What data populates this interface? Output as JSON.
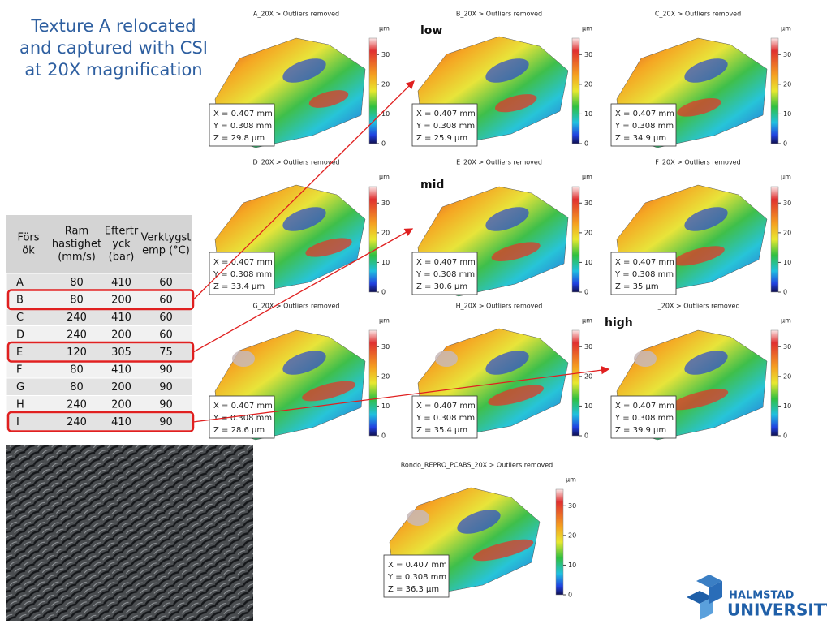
{
  "title": [
    "Texture A relocated",
    "and captured with CSI",
    "at 20X magnification"
  ],
  "annotations": [
    "low",
    "mid",
    "high"
  ],
  "colorbar": {
    "unit": "µm",
    "ticks": [
      0,
      10,
      20,
      30
    ]
  },
  "panels": [
    {
      "title": "A_20X > Outliers removed",
      "x": "X = 0.407 mm",
      "y": "Y = 0.308 mm",
      "z": "Z = 29.8 µm"
    },
    {
      "title": "B_20X > Outliers removed",
      "x": "X = 0.407 mm",
      "y": "Y = 0.308 mm",
      "z": "Z = 25.9 µm"
    },
    {
      "title": "C_20X > Outliers removed",
      "x": "X = 0.407 mm",
      "y": "Y = 0.308 mm",
      "z": "Z = 34.9 µm"
    },
    {
      "title": "D_20X > Outliers removed",
      "x": "X = 0.407 mm",
      "y": "Y = 0.308 mm",
      "z": "Z = 33.4 µm"
    },
    {
      "title": "E_20X > Outliers removed",
      "x": "X = 0.407 mm",
      "y": "Y = 0.308 mm",
      "z": "Z = 30.6 µm"
    },
    {
      "title": "F_20X > Outliers removed",
      "x": "X = 0.407 mm",
      "y": "Y = 0.308 mm",
      "z": "Z = 35 µm"
    },
    {
      "title": "G_20X > Outliers removed",
      "x": "X = 0.407 mm",
      "y": "Y = 0.308 mm",
      "z": "Z = 28.6 µm"
    },
    {
      "title": "H_20X > Outliers removed",
      "x": "X = 0.407 mm",
      "y": "Y = 0.308 mm",
      "z": "Z = 35.4 µm"
    },
    {
      "title": "I_20X > Outliers removed",
      "x": "X = 0.407 mm",
      "y": "Y = 0.308 mm",
      "z": "Z = 39.9 µm"
    },
    {
      "title": "Rondo_REPRO_PCABS_20X > Outliers removed",
      "x": "X = 0.407 mm",
      "y": "Y = 0.308 mm",
      "z": "Z = 36.3 µm"
    }
  ],
  "table": {
    "header": [
      [
        "Förs",
        "ök"
      ],
      [
        "Ram",
        "hastighet",
        "(mm/s)"
      ],
      [
        "Eftertr",
        "yck",
        "(bar)"
      ],
      [
        "Verktygst",
        "emp (°C)"
      ]
    ],
    "rows": [
      [
        "A",
        80,
        410,
        60
      ],
      [
        "B",
        80,
        200,
        60
      ],
      [
        "C",
        240,
        410,
        60
      ],
      [
        "D",
        240,
        200,
        60
      ],
      [
        "E",
        120,
        305,
        75
      ],
      [
        "F",
        80,
        410,
        90
      ],
      [
        "G",
        80,
        200,
        90
      ],
      [
        "H",
        240,
        200,
        90
      ],
      [
        "I",
        240,
        410,
        90
      ]
    ]
  },
  "logo": [
    "HALMSTAD",
    "UNIVERSITY"
  ]
}
